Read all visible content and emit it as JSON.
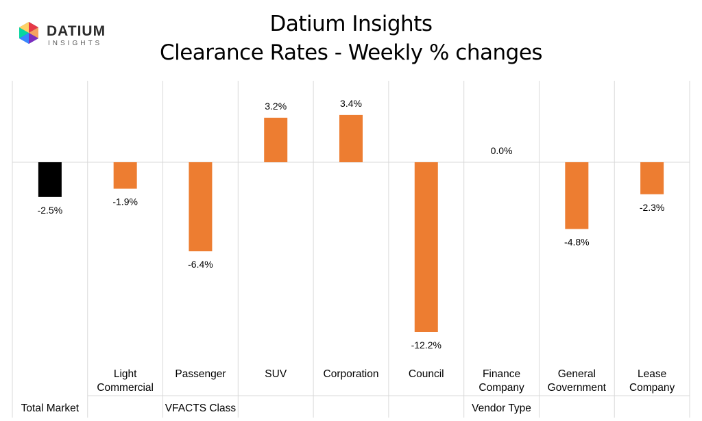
{
  "logo": {
    "name": "DATIUM",
    "sub": "INSIGHTS"
  },
  "title": {
    "line1": "Datium Insights",
    "line2": "Clearance Rates - Weekly % changes"
  },
  "colors": {
    "highlight": "#000000",
    "bar": "#ED7D31",
    "grid": "#D9D9D9"
  },
  "chart_data": {
    "type": "bar",
    "title": "Datium Insights — Clearance Rates - Weekly % changes",
    "xlabel": "",
    "ylabel": "",
    "grid": true,
    "ylim": [
      -14.5,
      5.2
    ],
    "categories": [
      [
        "Total Market"
      ],
      [
        "Light",
        "Commercial"
      ],
      [
        "Passenger"
      ],
      [
        "SUV"
      ],
      [
        "Corporation"
      ],
      [
        "Council"
      ],
      [
        "Finance",
        "Company"
      ],
      [
        "General",
        "Government"
      ],
      [
        "Lease",
        "Company"
      ]
    ],
    "values": [
      -2.5,
      -1.9,
      -6.4,
      3.2,
      3.4,
      -12.2,
      0.0,
      -4.8,
      -2.3
    ],
    "labels": [
      "-2.5%",
      "-1.9%",
      "-6.4%",
      "3.2%",
      "3.4%",
      "-12.2%",
      "0.0%",
      "-4.8%",
      "-2.3%"
    ],
    "highlight_index": 0,
    "groups": [
      {
        "name": "Total Market",
        "start": 0,
        "end": 0,
        "single": true
      },
      {
        "name": "VFACTS Class",
        "start": 1,
        "end": 3
      },
      {
        "name": "Vendor Type",
        "start": 4,
        "end": 8
      }
    ]
  }
}
